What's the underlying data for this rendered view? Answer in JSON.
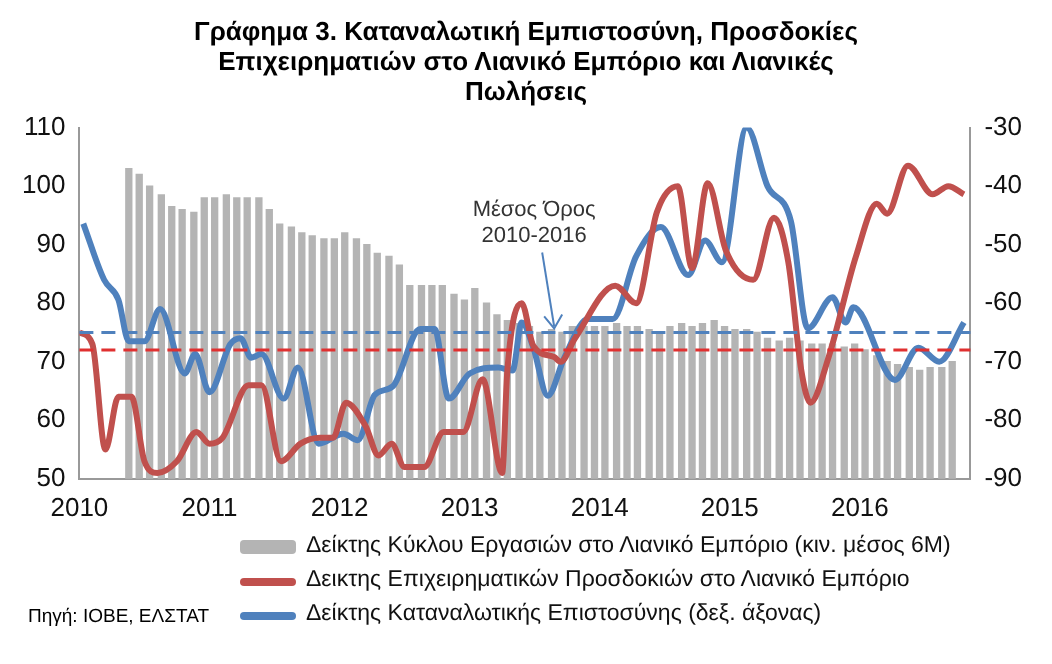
{
  "chart_data": {
    "type": "line",
    "title": "Γράφημα 3. Καταναλωτική Εμπιστοσύνη, Προσδοκίες Επιχειρηματιών στο Λιανικό Εμπόριο και Λιανικές Πωλήσεις",
    "xlim": [
      2010,
      2016.85
    ],
    "xticks": [
      2010,
      2011,
      2012,
      2013,
      2014,
      2015,
      2016
    ],
    "ylim": [
      50,
      110
    ],
    "yticks": [
      50,
      60,
      70,
      80,
      90,
      100,
      110
    ],
    "y2lim": [
      -90,
      -30
    ],
    "y2ticks": [
      -90,
      -80,
      -70,
      -60,
      -50,
      -40,
      -30
    ],
    "grid": false,
    "legend": "bottom",
    "series": [
      {
        "type": "bar",
        "name": "Δείκτης Κύκλου Εργασιών στο Λιανικό Εμπόριο (κιν. μέσος 6Μ)",
        "color": "#b4b4b4",
        "x": [
          2010.38,
          2010.46,
          2010.54,
          2010.63,
          2010.71,
          2010.79,
          2010.88,
          2010.96,
          2011.04,
          2011.13,
          2011.21,
          2011.29,
          2011.38,
          2011.46,
          2011.54,
          2011.63,
          2011.71,
          2011.79,
          2011.88,
          2011.96,
          2012.04,
          2012.13,
          2012.21,
          2012.29,
          2012.38,
          2012.46,
          2012.54,
          2012.63,
          2012.71,
          2012.79,
          2012.88,
          2012.96,
          2013.04,
          2013.13,
          2013.21,
          2013.29,
          2013.38,
          2013.46,
          2013.54,
          2013.63,
          2013.71,
          2013.79,
          2013.88,
          2013.96,
          2014.04,
          2014.13,
          2014.21,
          2014.29,
          2014.38,
          2014.46,
          2014.54,
          2014.63,
          2014.71,
          2014.79,
          2014.88,
          2014.96,
          2015.04,
          2015.13,
          2015.21,
          2015.29,
          2015.38,
          2015.46,
          2015.54,
          2015.63,
          2015.71,
          2015.79,
          2015.88,
          2015.96,
          2016.04,
          2016.13,
          2016.21,
          2016.29,
          2016.38,
          2016.46,
          2016.54,
          2016.63,
          2016.71
        ],
        "values": [
          103,
          102,
          100,
          98.5,
          96.5,
          96,
          95.5,
          98,
          98,
          98.5,
          98,
          98,
          98,
          96,
          93.5,
          93,
          92,
          91.5,
          91,
          91,
          92,
          91,
          90,
          88.5,
          88,
          86.5,
          83,
          83,
          83,
          83,
          81.5,
          80.5,
          82.5,
          80,
          78,
          77,
          76.5,
          76,
          75,
          75.5,
          75,
          76,
          76,
          76,
          76,
          76.5,
          76,
          76,
          75.5,
          75,
          76,
          76.5,
          76,
          76.5,
          77,
          76,
          75.5,
          75.5,
          75,
          74,
          73.5,
          74,
          73.5,
          73,
          73,
          73,
          72.5,
          73,
          72,
          71,
          70,
          69.5,
          69,
          68.5,
          69,
          69,
          70
        ]
      },
      {
        "name": "Δεικτης Επιχειρηματικών  Προσδοκιών στο Λιανικό Εμπόριο",
        "color": "#c0504d",
        "x": [
          2010,
          2010.1,
          2010.2,
          2010.3,
          2010.4,
          2010.5,
          2010.6,
          2010.75,
          2010.9,
          2011,
          2011.1,
          2011.3,
          2011.4,
          2011.55,
          2011.7,
          2011.85,
          2011.95,
          2012.05,
          2012.2,
          2012.3,
          2012.4,
          2012.5,
          2012.65,
          2012.8,
          2012.95,
          2013.1,
          2013.25,
          2013.29,
          2013.4,
          2013.49,
          2013.65,
          2013.7,
          2013.81,
          2014.12,
          2014.28,
          2014.44,
          2014.6,
          2014.71,
          2014.83,
          2014.97,
          2015.18,
          2015.34,
          2015.45,
          2015.55,
          2015.62,
          2015.76,
          2015.97,
          2016.13,
          2016.21,
          2016.37,
          2016.56,
          2016.68,
          2016.8
        ],
        "values": [
          75,
          73,
          55,
          64,
          64,
          53,
          51,
          53,
          58,
          56,
          57,
          66,
          66,
          53,
          56,
          57,
          57,
          63,
          59,
          54,
          56,
          52,
          52,
          58,
          58,
          67,
          51,
          68.5,
          80,
          72.7,
          70.8,
          70,
          74,
          83,
          80,
          95.6,
          100,
          86,
          100.5,
          89,
          84,
          94.6,
          87,
          68.5,
          63,
          70.8,
          88,
          97,
          95.3,
          103.5,
          98.6,
          100,
          98.6
        ]
      },
      {
        "axis": "y2",
        "name": "Δείκτης Καταναλωτικής Επιστοσύνης (δεξ. άξονας)",
        "color": "#4f81bd",
        "x": [
          2010.03,
          2010.19,
          2010.3,
          2010.38,
          2010.5,
          2010.62,
          2010.81,
          2010.89,
          2011,
          2011.16,
          2011.24,
          2011.32,
          2011.4,
          2011.57,
          2011.68,
          2011.84,
          2012.03,
          2012.14,
          2012.27,
          2012.41,
          2012.62,
          2012.73,
          2012.84,
          2013,
          2013.22,
          2013.33,
          2013.4,
          2013.49,
          2013.6,
          2013.73,
          2013.91,
          2014.1,
          2014.28,
          2014.47,
          2014.68,
          2014.81,
          2014.94,
          2015.13,
          2015.29,
          2015.47,
          2015.6,
          2015.79,
          2015.89,
          2015.95,
          2016.27,
          2016.45,
          2016.61,
          2016.8
        ],
        "values": [
          -46.4,
          -56,
          -59.4,
          -66.5,
          -66.5,
          -61,
          -72,
          -68.7,
          -75.2,
          -67,
          -66,
          -69.3,
          -68.7,
          -76.3,
          -71,
          -84,
          -82.3,
          -83.4,
          -75.7,
          -74.2,
          -64.4,
          -64.4,
          -76.3,
          -72,
          -71,
          -71.5,
          -63.3,
          -67.6,
          -75.8,
          -69.2,
          -62.7,
          -62.7,
          -52,
          -47,
          -55.2,
          -49.3,
          -53,
          -30,
          -40,
          -46,
          -64.3,
          -59,
          -63.3,
          -60.7,
          -73.1,
          -67.6,
          -70,
          -63.3
        ]
      }
    ],
    "ref_lines": [
      {
        "axis": "y",
        "value": 72,
        "color": "#e03030",
        "line_style": "dashed"
      },
      {
        "axis": "y2",
        "value": -65,
        "color": "#4f81bd",
        "line_style": "dashed"
      }
    ],
    "annotations": [
      {
        "text": "Μέσος Όρος 2010-2016",
        "x": 2013.65,
        "y": 75
      },
      "Πηγή: ΙΟΒΕ, ΕΛΣΤΑΤ"
    ]
  }
}
